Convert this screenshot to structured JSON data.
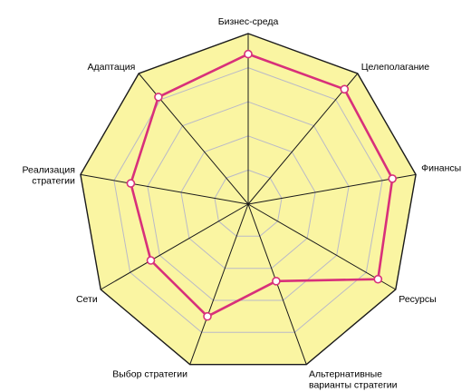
{
  "colors": {
    "background": "#ffffff",
    "plot_fill": "#faf5a2",
    "outline": "#1a1a1a",
    "grid": "#b9b9c8",
    "spoke": "#1a1a1a",
    "series_line": "#d8307a",
    "marker_fill": "#ffffff"
  },
  "chart_data": {
    "type": "radar",
    "axes": [
      {
        "label": [
          "Бизнес-среда"
        ]
      },
      {
        "label": [
          "Целеполагание"
        ]
      },
      {
        "label": [
          "Финансы"
        ]
      },
      {
        "label": [
          "Ресурсы"
        ]
      },
      {
        "label": [
          "Альтернативные",
          "варианты стратегии"
        ]
      },
      {
        "label": [
          "Выбор стратегии"
        ]
      },
      {
        "label": [
          "Сети"
        ]
      },
      {
        "label": [
          "Реализация",
          "стратегии"
        ]
      },
      {
        "label": [
          "Адаптация"
        ]
      }
    ],
    "range": [
      0,
      5
    ],
    "rings": 5,
    "grid": true,
    "series": [
      {
        "values": [
          4.4,
          4.4,
          4.3,
          4.4,
          2.4,
          3.5,
          3.3,
          3.5,
          4.1
        ]
      }
    ]
  }
}
